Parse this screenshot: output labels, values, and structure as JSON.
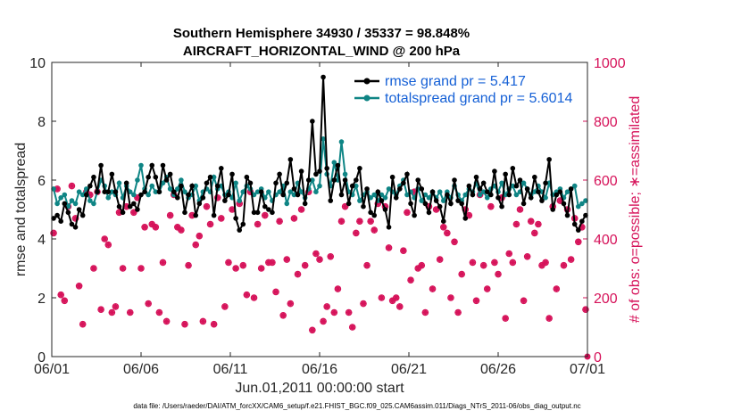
{
  "chart_data": {
    "type": "line",
    "title": "Southern Hemisphere 34930 / 35337 = 98.848%",
    "subtitle": "AIRCRAFT_HORIZONTAL_WIND @ 200 hPa",
    "xlabel": "Jun.01,2011 00:00:00 start",
    "ylabel": "rmse and totalspread",
    "y2label": "# of obs: o=possible; ∗=assimilated",
    "footer": "data file: /Users/raeder/DAI/ATM_forcXX/CAM6_setup/f.e21.FHIST_BGC.f09_025.CAM6assim.011/Diags_NTrS_2011-06/obs_diag_output.nc",
    "xlim": [
      0,
      30
    ],
    "ylim": [
      0,
      10
    ],
    "y2lim": [
      0,
      1000
    ],
    "xticks": [
      0,
      5,
      10,
      15,
      20,
      25,
      30
    ],
    "xtick_labels": [
      "06/01",
      "06/06",
      "06/11",
      "06/16",
      "06/21",
      "06/26",
      "07/01"
    ],
    "yticks": [
      0,
      2,
      4,
      6,
      8,
      10
    ],
    "ytick_labels": [
      "0",
      "2",
      "4",
      "6",
      "8",
      "10"
    ],
    "y2ticks": [
      0,
      200,
      400,
      600,
      800,
      1000
    ],
    "y2tick_labels": [
      "0",
      "200",
      "400",
      "600",
      "800",
      "1000"
    ],
    "legend": [
      "rmse grand pr = 5.417",
      "totalspread grand pr = 5.6014"
    ],
    "legend_position": "top-right",
    "colors": {
      "rmse": "#000000",
      "spread": "#0f8585",
      "obs": "#d6135a",
      "legend_text": "#1560d6"
    },
    "rmse": [
      4.7,
      4.8,
      4.6,
      5.2,
      4.9,
      4.5,
      4.4,
      5,
      4.8,
      5.5,
      5.8,
      6.1,
      5.6,
      6.5,
      5.6,
      5.6,
      6.2,
      5.6,
      5.1,
      4.9,
      5.9,
      5.1,
      5.2,
      5.0,
      5.5,
      5.6,
      6.1,
      6.5,
      6.1,
      5.6,
      6.5,
      6.0,
      6.2,
      5.6,
      5.4,
      5.8,
      4.9,
      5.5,
      5.8,
      4.8,
      5.2,
      5.4,
      5.9,
      6.1,
      4.8,
      5.8,
      6.4,
      5.3,
      5.5,
      6.2,
      4.7,
      4.3,
      4.5,
      6.1,
      5.9,
      4.9,
      4.9,
      5.6,
      5.1,
      5.0,
      4.9,
      5.9,
      6.2,
      5.5,
      5.9,
      6.7,
      5.7,
      5.5,
      6.3,
      5.2,
      6.0,
      8.0,
      6.2,
      6.3,
      9.5,
      6.4,
      5.3,
      6.0,
      6.5,
      5.5,
      6.0,
      5.2,
      5.8,
      6.0,
      6.4,
      5.1,
      5.7,
      4.9,
      4.8,
      5.6,
      5.3,
      5.0,
      4.4,
      6.1,
      5.4,
      5.7,
      5.9,
      6.2,
      5.2,
      4.8,
      6.0,
      5.7,
      5.2,
      4.9,
      5.6,
      5.3,
      5.1,
      4.6,
      5.5,
      5.2,
      6.0,
      5.3,
      5.2,
      4.7,
      5.8,
      5.5,
      6.1,
      5.7,
      5.9,
      5.6,
      5.5,
      6.3,
      5.4,
      5.1,
      6.2,
      5.5,
      6.4,
      5.8,
      6.0,
      5.2,
      5.7,
      5.4,
      6.1,
      5.6,
      5.3,
      5.9,
      6.7,
      5.0,
      5.5,
      5.6,
      5.2,
      4.8,
      5.7,
      4.5,
      4.3,
      4.6,
      4.8
    ],
    "totalspread": [
      5.7,
      5.2,
      5.4,
      5.5,
      5.1,
      5.3,
      5.2,
      5.6,
      5.5,
      5.7,
      5.3,
      5.2,
      5.6,
      6.0,
      5.8,
      5.4,
      5.6,
      5.5,
      5.9,
      5.4,
      5.8,
      5.6,
      5.5,
      6.0,
      6.5,
      5.7,
      5.5,
      5.8,
      5.6,
      5.6,
      5.9,
      6.1,
      5.7,
      5.5,
      5.7,
      6.0,
      5.6,
      5.4,
      5.5,
      5.8,
      5.3,
      5.6,
      5.7,
      5.6,
      6.1,
      5.7,
      5.8,
      5.5,
      5.6,
      5.4,
      5.9,
      5.3,
      5.6,
      5.8,
      5.7,
      5.5,
      5.6,
      5.7,
      5.4,
      5.6,
      5.3,
      5.5,
      5.6,
      5.8,
      5.2,
      5.6,
      5.5,
      5.9,
      5.6,
      5.4,
      5.7,
      6.0,
      5.6,
      5.8,
      7.4,
      6.2,
      5.8,
      6.6,
      6.0,
      7.3,
      6.2,
      5.6,
      5.5,
      5.8,
      5.3,
      5.5,
      5.6,
      5.4,
      5.5,
      5.3,
      5.5,
      5.4,
      5.7,
      5.6,
      5.5,
      5.8,
      6.0,
      5.5,
      5.6,
      5.4,
      5.7,
      5.3,
      5.5,
      5.4,
      5.6,
      5.4,
      5.6,
      5.3,
      5.6,
      5.4,
      5.8,
      5.5,
      5.3,
      5.5,
      5.7,
      5.6,
      5.9,
      5.5,
      5.6,
      5.4,
      5.7,
      5.8,
      5.6,
      5.9,
      5.5,
      5.7,
      5.8,
      5.5,
      5.6,
      5.9,
      5.7,
      5.5,
      5.6,
      5.8,
      5.6,
      5.4,
      5.9,
      5.5,
      5.6,
      5.7,
      5.4,
      5.6,
      5.7,
      5.8,
      5.1,
      5.2,
      5.3
    ],
    "obs_counts": [
      420,
      570,
      210,
      190,
      510,
      580,
      470,
      240,
      110,
      560,
      550,
      300,
      560,
      160,
      400,
      380,
      150,
      170,
      490,
      300,
      510,
      150,
      490,
      540,
      300,
      440,
      180,
      450,
      440,
      150,
      320,
      120,
      480,
      550,
      440,
      430,
      110,
      310,
      480,
      380,
      410,
      120,
      510,
      450,
      110,
      540,
      470,
      170,
      320,
      500,
      300,
      520,
      310,
      210,
      560,
      200,
      450,
      300,
      480,
      320,
      320,
      220,
      460,
      140,
      330,
      180,
      470,
      280,
      500,
      310,
      560,
      90,
      350,
      330,
      120,
      170,
      340,
      150,
      230,
      460,
      510,
      150,
      100,
      420,
      460,
      180,
      310,
      460,
      430,
      520,
      200,
      510,
      370,
      190,
      200,
      170,
      360,
      490,
      260,
      560,
      300,
      310,
      150,
      510,
      230,
      500,
      330,
      440,
      420,
      200,
      390,
      150,
      280,
      500,
      480,
      320,
      190,
      550,
      310,
      230,
      510,
      320,
      280,
      540,
      130,
      350,
      320,
      450,
      500,
      190,
      340,
      460,
      420,
      450,
      310,
      320,
      130,
      510,
      230,
      530,
      310,
      500,
      330,
      470,
      390,
      440,
      160
    ],
    "obs_possible": [
      420,
      570,
      210,
      190,
      510,
      580,
      470,
      240,
      110,
      560,
      550,
      300,
      560,
      160,
      400,
      380,
      150,
      170,
      490,
      300,
      510,
      150,
      490,
      540,
      300,
      440,
      180,
      450,
      440,
      150,
      320,
      120,
      480,
      550,
      440,
      430,
      110,
      310,
      480,
      380,
      410,
      120,
      510,
      450,
      110,
      540,
      470,
      170,
      320,
      500,
      300,
      520,
      310,
      210,
      560,
      200,
      450,
      300,
      480,
      320,
      320,
      220,
      460,
      140,
      330,
      180,
      470,
      280,
      500,
      310,
      560,
      90,
      350,
      330,
      120,
      170,
      340,
      150,
      230,
      460,
      510,
      150,
      100,
      420,
      460,
      180,
      310,
      460,
      430,
      520,
      200,
      510,
      370,
      190,
      200,
      170,
      360,
      490,
      260,
      560,
      300,
      310,
      150,
      510,
      230,
      500,
      330,
      440,
      420,
      200,
      390,
      150,
      280,
      500,
      480,
      320,
      190,
      550,
      310,
      230,
      510,
      320,
      280,
      540,
      130,
      350,
      320,
      450,
      500,
      190,
      340,
      460,
      420,
      450,
      310,
      320,
      130,
      510,
      230,
      530,
      310,
      500,
      330,
      470,
      390,
      440,
      160
    ]
  }
}
